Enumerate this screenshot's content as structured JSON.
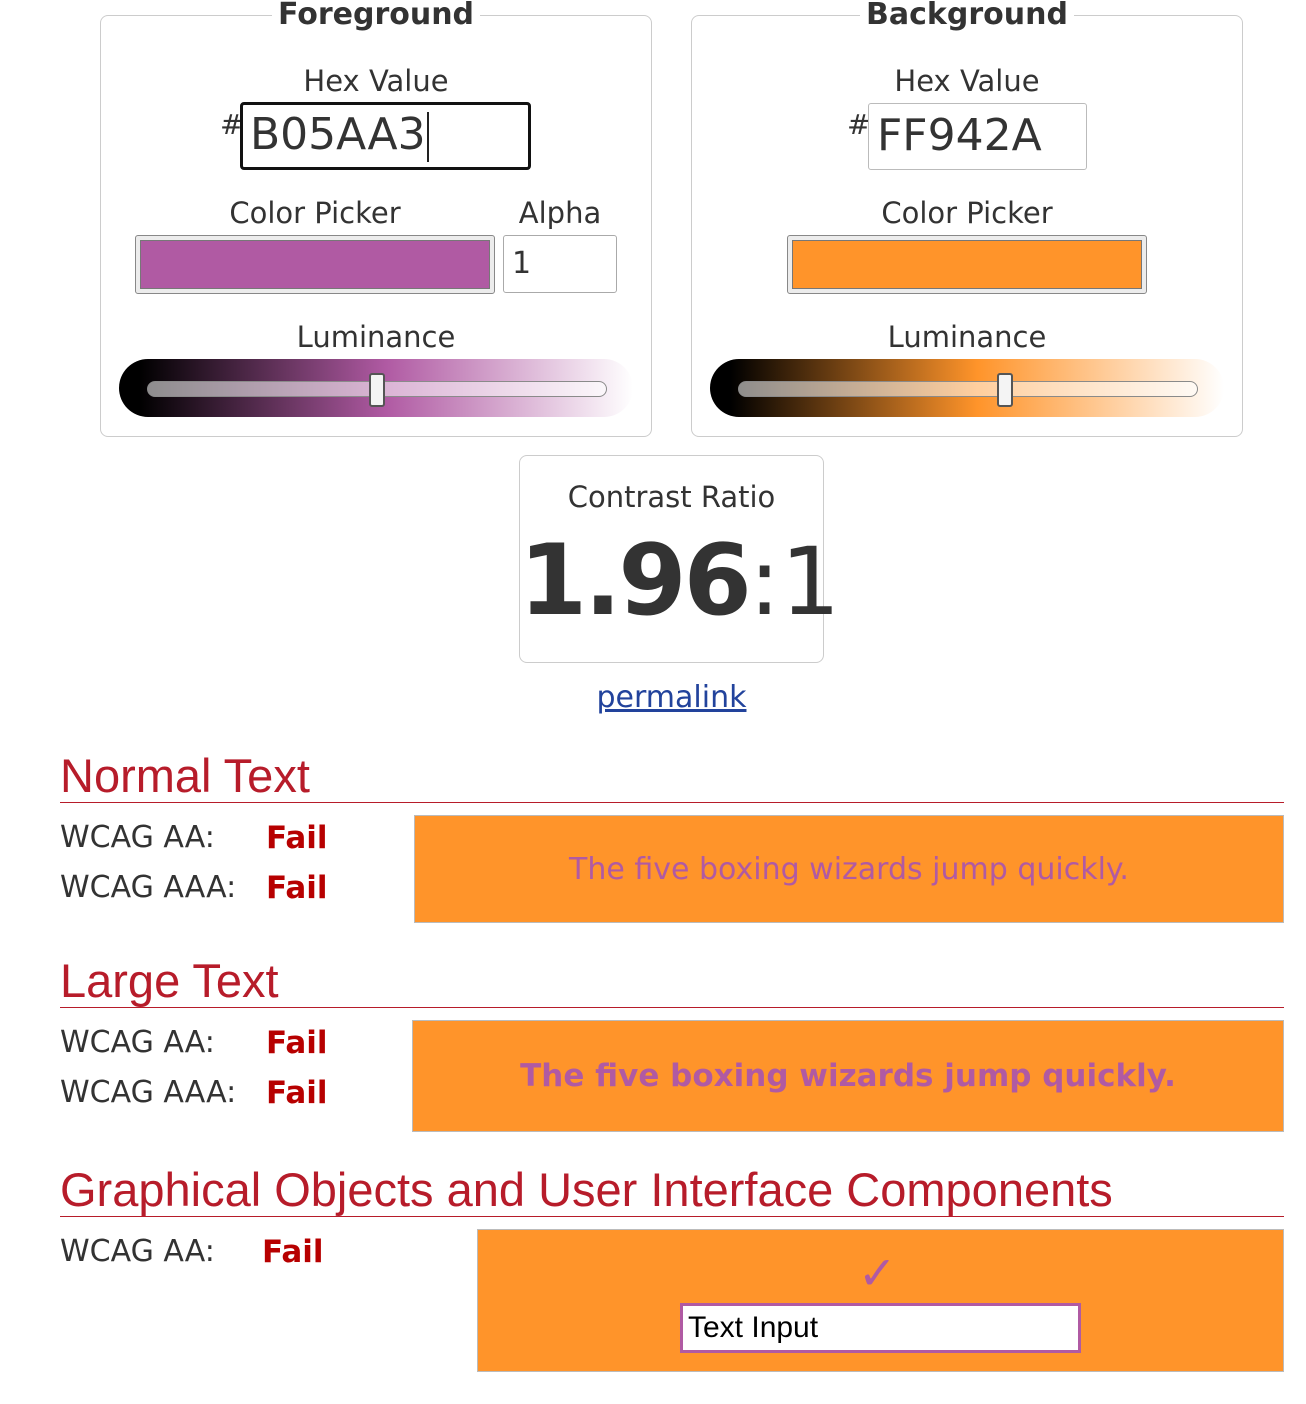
{
  "foreground": {
    "legend": "Foreground",
    "hex_label": "Hex Value",
    "hash": "#",
    "hex_value": "B05AA3",
    "picker_label": "Color Picker",
    "color": "#B05AA3",
    "alpha_label": "Alpha",
    "alpha_value": "1",
    "luminance_label": "Luminance",
    "luminance_level": 0.5
  },
  "background": {
    "legend": "Background",
    "hex_label": "Hex Value",
    "hash": "#",
    "hex_value": "FF942A",
    "picker_label": "Color Picker",
    "color": "#FF942A",
    "luminance_label": "Luminance",
    "luminance_level": 0.58
  },
  "contrast": {
    "title": "Contrast Ratio",
    "ratio": "1.96",
    "separator": ":",
    "suffix": "1"
  },
  "permalink": "permalink",
  "normal_text": {
    "heading": "Normal Text",
    "aa_label": "WCAG AA:",
    "aa_result": "Fail",
    "aaa_label": "WCAG AAA:",
    "aaa_result": "Fail",
    "sample": "The five boxing wizards jump quickly."
  },
  "large_text": {
    "heading": "Large Text",
    "aa_label": "WCAG AA:",
    "aa_result": "Fail",
    "aaa_label": "WCAG AAA:",
    "aaa_result": "Fail",
    "sample": "The five boxing wizards jump quickly."
  },
  "graphical": {
    "heading": "Graphical Objects and User Interface Components",
    "aa_label": "WCAG AA:",
    "aa_result": "Fail",
    "check_glyph": "✓",
    "input_value": "Text Input"
  },
  "colors": {
    "fail": "#b70000",
    "heading": "#b71c2a",
    "link": "#22439c"
  }
}
